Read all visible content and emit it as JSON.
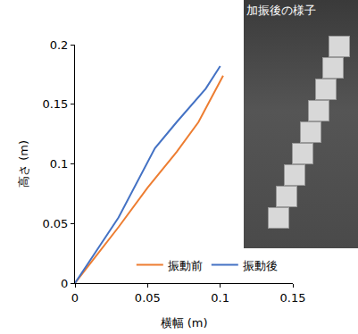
{
  "chart_data": {
    "type": "line",
    "x_label": "横幅 (m)",
    "y_label": "高さ (m)",
    "series": [
      {
        "name": "振動前",
        "color": "#ED7D31",
        "x": [
          0,
          0.03,
          0.05,
          0.07,
          0.085,
          0.102
        ],
        "values": [
          0,
          0.047,
          0.08,
          0.11,
          0.135,
          0.174
        ]
      },
      {
        "name": "振動後",
        "color": "#4472C4",
        "x": [
          0,
          0.03,
          0.055,
          0.07,
          0.09,
          0.1
        ],
        "values": [
          0,
          0.055,
          0.113,
          0.135,
          0.163,
          0.182
        ]
      }
    ],
    "xlim": [
      0,
      0.15
    ],
    "xticks": [
      0,
      0.05,
      0.1,
      0.15
    ],
    "ylim": [
      0,
      0.2
    ],
    "yticks": [
      0,
      0.05,
      0.1,
      0.15,
      0.2
    ],
    "grid": false,
    "legend": "bottom right",
    "annotations": [
      {
        "text": "加振後の様子"
      }
    ]
  }
}
